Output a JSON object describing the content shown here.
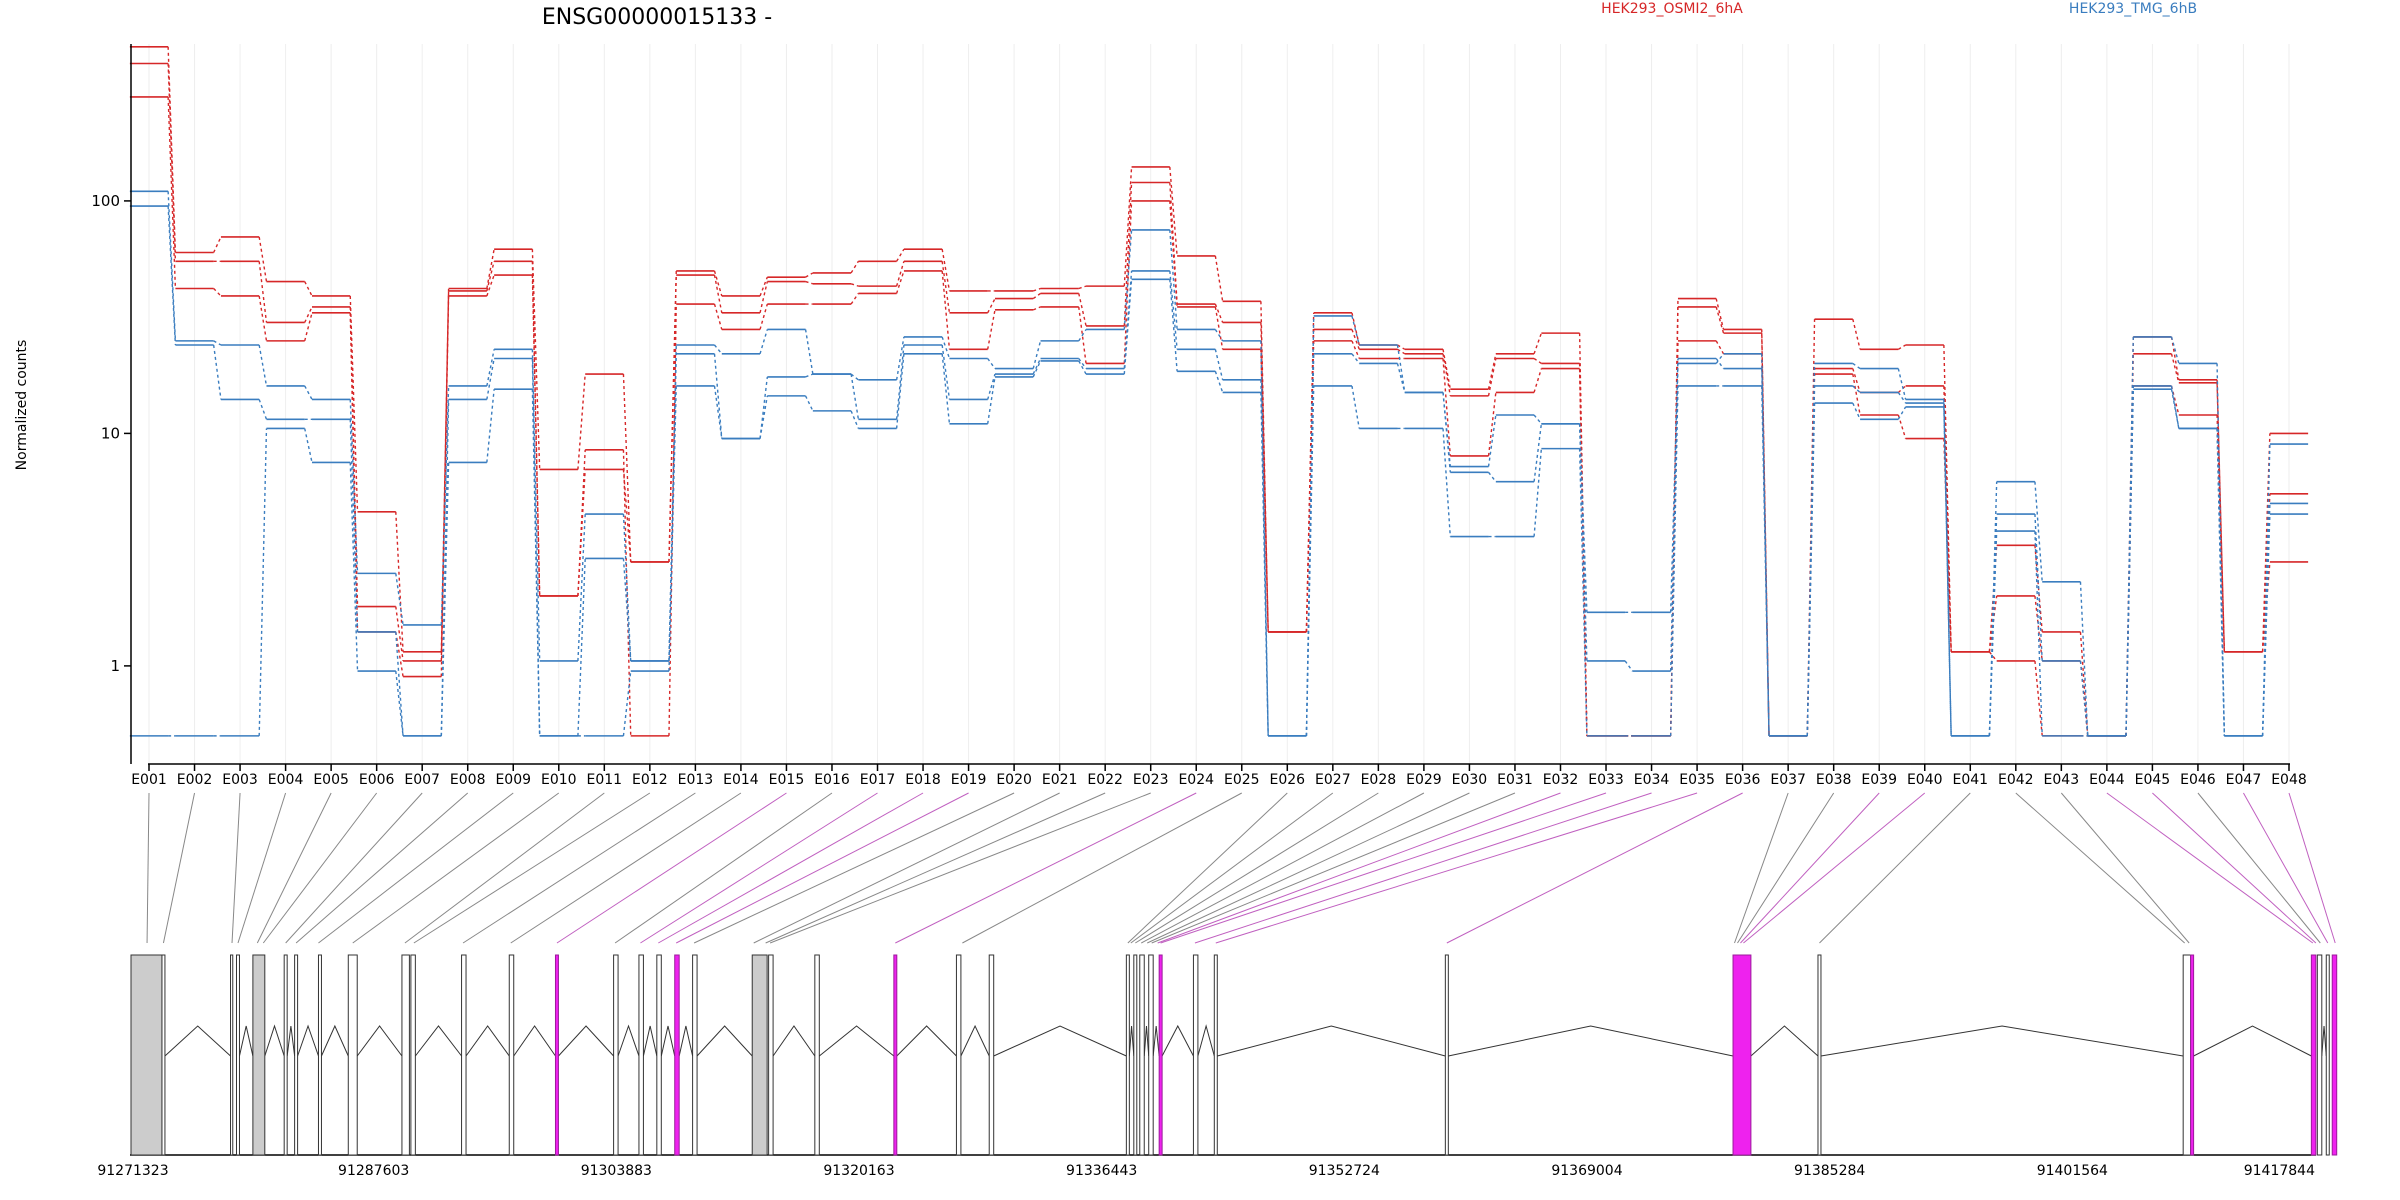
{
  "title": "ENSG00000015133 -",
  "chart_data": {
    "type": "line",
    "title": "ENSG00000015133 -",
    "xlabel": "",
    "ylabel": "Normalized counts",
    "y_scale": "log",
    "ylim": [
      0.48,
      600
    ],
    "y_ticks": [
      1,
      10,
      100
    ],
    "y_tick_labels": [
      "1",
      "10",
      "100"
    ],
    "grid": "vertical",
    "categories": [
      "E001",
      "E002",
      "E003",
      "E004",
      "E005",
      "E006",
      "E007",
      "E008",
      "E009",
      "E010",
      "E011",
      "E012",
      "E013",
      "E014",
      "E015",
      "E016",
      "E017",
      "E018",
      "E019",
      "E020",
      "E021",
      "E022",
      "E023",
      "E024",
      "E025",
      "E026",
      "E027",
      "E028",
      "E029",
      "E030",
      "E031",
      "E032",
      "E033",
      "E034",
      "E035",
      "E036",
      "E037",
      "E038",
      "E039",
      "E040",
      "E041",
      "E042",
      "E043",
      "E044",
      "E045",
      "E046",
      "E047",
      "E048"
    ],
    "legend": [
      {
        "label": "HEK293_OSMI2_6hA",
        "color": "#d62728"
      },
      {
        "label": "HEK293_TMG_6hB",
        "color": "#3a7dbf"
      }
    ],
    "series": [
      {
        "group": "HEK293_OSMI2_6hA",
        "color": "#d62728",
        "values": [
          460,
          60,
          70,
          45,
          39,
          4.6,
          1.15,
          42,
          62,
          7,
          18,
          2.8,
          50,
          39,
          47,
          49,
          55,
          62,
          41,
          41,
          42,
          43,
          140,
          58,
          37,
          1.4,
          33,
          24,
          23,
          15.5,
          22,
          27,
          0.5,
          0.5,
          38,
          28,
          0.5,
          31,
          23,
          24,
          1.15,
          3.3,
          1.4,
          0.5,
          26,
          17,
          1.15,
          10
        ]
      },
      {
        "group": "HEK293_OSMI2_6hA",
        "color": "#d62728",
        "values": [
          390,
          55,
          55,
          30,
          35,
          1.8,
          1.05,
          41,
          55,
          2,
          7,
          2.8,
          48,
          33,
          45,
          44,
          43,
          55,
          33,
          38,
          40,
          29,
          120,
          36,
          30,
          1.4,
          28,
          23,
          22,
          14.5,
          21,
          20,
          0.5,
          0.5,
          35,
          27,
          0.5,
          19,
          15,
          16,
          1.15,
          2,
          1.05,
          0.5,
          22,
          16.5,
          1.15,
          5.5
        ]
      },
      {
        "group": "HEK293_OSMI2_6hA",
        "color": "#d62728",
        "values": [
          280,
          42,
          39,
          25,
          33,
          1.4,
          0.9,
          39,
          48,
          2,
          8.5,
          0.5,
          36,
          28,
          36,
          36,
          40,
          50,
          23,
          34,
          35,
          20,
          100,
          35,
          23,
          1.4,
          25,
          21,
          21,
          8,
          15,
          19,
          0.5,
          0.5,
          25,
          22,
          0.5,
          18,
          12,
          9.5,
          1.15,
          1.05,
          0.5,
          0.5,
          16,
          12,
          1.15,
          2.8
        ]
      },
      {
        "group": "HEK293_TMG_6hB",
        "color": "#3a7dbf",
        "values": [
          110,
          25,
          24,
          16,
          14,
          2.5,
          1.5,
          16,
          23,
          1.05,
          4.5,
          1.05,
          24,
          22,
          28,
          18,
          17,
          26,
          21,
          19,
          25,
          28,
          75,
          28,
          25,
          0.5,
          32,
          24,
          15,
          7.2,
          12,
          11,
          1.7,
          1.7,
          21,
          19,
          0.5,
          20,
          19,
          14,
          0.5,
          6.2,
          2.3,
          0.5,
          26,
          20,
          0.5,
          9
        ]
      },
      {
        "group": "HEK293_TMG_6hB",
        "color": "#3a7dbf",
        "values": [
          95,
          24,
          14,
          11.5,
          11.5,
          1.4,
          0.5,
          14,
          21,
          0.5,
          2.9,
          1.05,
          22,
          9.5,
          17.5,
          18,
          11.5,
          24,
          14,
          18,
          21,
          19,
          50,
          23,
          17,
          0.5,
          22,
          20,
          15,
          6.8,
          6.2,
          11,
          1.05,
          0.95,
          20,
          22,
          0.5,
          16,
          15,
          13.5,
          0.5,
          4.5,
          1.05,
          0.5,
          16,
          10.5,
          0.5,
          5
        ]
      },
      {
        "group": "HEK293_TMG_6hB",
        "color": "#3a7dbf",
        "values": [
          0.5,
          0.5,
          0.5,
          10.5,
          7.5,
          0.95,
          0.5,
          7.5,
          15.5,
          0.5,
          0.5,
          0.95,
          16,
          9.5,
          14.5,
          12.5,
          10.5,
          22,
          11,
          17.5,
          20.5,
          18,
          46,
          18.5,
          15,
          0.5,
          16,
          10.5,
          10.5,
          3.6,
          3.6,
          8.6,
          0.5,
          0.5,
          16,
          16,
          0.5,
          13.5,
          11.5,
          13,
          0.5,
          3.8,
          0.5,
          0.5,
          15.5,
          10.5,
          0.5,
          4.5
        ]
      }
    ],
    "gene_model": {
      "coordinates": [
        "91271323",
        "91287603",
        "91303883",
        "91320163",
        "91336443",
        "91352724",
        "91369004",
        "91385284",
        "91401564",
        "91417844"
      ],
      "region_start": 91271323,
      "region_end": 91417844,
      "highlight_color": "#ee22ee",
      "exons": [
        {
          "start": 91271323,
          "end": 91273400,
          "fill": "gray"
        },
        {
          "start": 91273400,
          "end": 91273600,
          "fill": "white"
        },
        {
          "start": 91278000,
          "end": 91278150,
          "fill": "white"
        },
        {
          "start": 91278400,
          "end": 91278600,
          "fill": "white"
        },
        {
          "start": 91279500,
          "end": 91280300,
          "fill": "gray"
        },
        {
          "start": 91281600,
          "end": 91281800,
          "fill": "white"
        },
        {
          "start": 91282300,
          "end": 91282500,
          "fill": "white"
        },
        {
          "start": 91283900,
          "end": 91284100,
          "fill": "white"
        },
        {
          "start": 91285900,
          "end": 91286500,
          "fill": "white"
        },
        {
          "start": 91289500,
          "end": 91290000,
          "fill": "white"
        },
        {
          "start": 91290100,
          "end": 91290400,
          "fill": "white"
        },
        {
          "start": 91293500,
          "end": 91293800,
          "fill": "white"
        },
        {
          "start": 91296700,
          "end": 91297000,
          "fill": "white"
        },
        {
          "start": 91299800,
          "end": 91300000,
          "fill": "magenta"
        },
        {
          "start": 91303700,
          "end": 91304000,
          "fill": "white"
        },
        {
          "start": 91305400,
          "end": 91305700,
          "fill": "white"
        },
        {
          "start": 91306600,
          "end": 91306900,
          "fill": "white"
        },
        {
          "start": 91307800,
          "end": 91308100,
          "fill": "magenta"
        },
        {
          "start": 91309000,
          "end": 91309300,
          "fill": "white"
        },
        {
          "start": 91313000,
          "end": 91314000,
          "fill": "gray"
        },
        {
          "start": 91314100,
          "end": 91314400,
          "fill": "white"
        },
        {
          "start": 91317200,
          "end": 91317500,
          "fill": "white"
        },
        {
          "start": 91322500,
          "end": 91322700,
          "fill": "magenta"
        },
        {
          "start": 91326700,
          "end": 91327000,
          "fill": "white"
        },
        {
          "start": 91328900,
          "end": 91329200,
          "fill": "white"
        },
        {
          "start": 91338100,
          "end": 91338300,
          "fill": "white"
        },
        {
          "start": 91338600,
          "end": 91338800,
          "fill": "white"
        },
        {
          "start": 91339000,
          "end": 91339300,
          "fill": "white"
        },
        {
          "start": 91339600,
          "end": 91339900,
          "fill": "white"
        },
        {
          "start": 91340300,
          "end": 91340500,
          "fill": "magenta"
        },
        {
          "start": 91342600,
          "end": 91342900,
          "fill": "white"
        },
        {
          "start": 91344000,
          "end": 91344200,
          "fill": "white"
        },
        {
          "start": 91359500,
          "end": 91359700,
          "fill": "white"
        },
        {
          "start": 91378800,
          "end": 91380000,
          "fill": "magenta"
        },
        {
          "start": 91384500,
          "end": 91384700,
          "fill": "white"
        },
        {
          "start": 91409000,
          "end": 91409500,
          "fill": "white"
        },
        {
          "start": 91409500,
          "end": 91409700,
          "fill": "magenta"
        },
        {
          "start": 91417600,
          "end": 91417900,
          "fill": "magenta"
        },
        {
          "start": 91418000,
          "end": 91418300,
          "fill": "white"
        },
        {
          "start": 91418600,
          "end": 91418800,
          "fill": "white"
        },
        {
          "start": 91419000,
          "end": 91419300,
          "fill": "magenta"
        }
      ],
      "connectors": [
        {
          "exon": "E001",
          "pos": 91272400,
          "color": "gray"
        },
        {
          "exon": "E002",
          "pos": 91273500,
          "color": "gray"
        },
        {
          "exon": "E003",
          "pos": 91278100,
          "color": "gray"
        },
        {
          "exon": "E004",
          "pos": 91278500,
          "color": "gray"
        },
        {
          "exon": "E005",
          "pos": 91279800,
          "color": "gray"
        },
        {
          "exon": "E006",
          "pos": 91280200,
          "color": "gray"
        },
        {
          "exon": "E007",
          "pos": 91281700,
          "color": "gray"
        },
        {
          "exon": "E008",
          "pos": 91282400,
          "color": "gray"
        },
        {
          "exon": "E009",
          "pos": 91283900,
          "color": "gray"
        },
        {
          "exon": "E010",
          "pos": 91286200,
          "color": "gray"
        },
        {
          "exon": "E011",
          "pos": 91289700,
          "color": "gray"
        },
        {
          "exon": "E012",
          "pos": 91290300,
          "color": "gray"
        },
        {
          "exon": "E013",
          "pos": 91293600,
          "color": "gray"
        },
        {
          "exon": "E014",
          "pos": 91296800,
          "color": "gray"
        },
        {
          "exon": "E015",
          "pos": 91299900,
          "color": "magenta"
        },
        {
          "exon": "E016",
          "pos": 91303800,
          "color": "gray"
        },
        {
          "exon": "E017",
          "pos": 91305500,
          "color": "magenta"
        },
        {
          "exon": "E018",
          "pos": 91306700,
          "color": "magenta"
        },
        {
          "exon": "E019",
          "pos": 91307900,
          "color": "magenta"
        },
        {
          "exon": "E020",
          "pos": 91309100,
          "color": "gray"
        },
        {
          "exon": "E021",
          "pos": 91313100,
          "color": "gray"
        },
        {
          "exon": "E022",
          "pos": 91313900,
          "color": "gray"
        },
        {
          "exon": "E023",
          "pos": 91314200,
          "color": "gray"
        },
        {
          "exon": "E024",
          "pos": 91322600,
          "color": "magenta"
        },
        {
          "exon": "E025",
          "pos": 91327100,
          "color": "gray"
        },
        {
          "exon": "E026",
          "pos": 91338200,
          "color": "gray"
        },
        {
          "exon": "E027",
          "pos": 91338400,
          "color": "gray"
        },
        {
          "exon": "E028",
          "pos": 91338700,
          "color": "gray"
        },
        {
          "exon": "E029",
          "pos": 91339100,
          "color": "gray"
        },
        {
          "exon": "E030",
          "pos": 91339500,
          "color": "gray"
        },
        {
          "exon": "E031",
          "pos": 91339800,
          "color": "gray"
        },
        {
          "exon": "E032",
          "pos": 91340200,
          "color": "magenta"
        },
        {
          "exon": "E033",
          "pos": 91340400,
          "color": "magenta"
        },
        {
          "exon": "E034",
          "pos": 91342700,
          "color": "magenta"
        },
        {
          "exon": "E035",
          "pos": 91344100,
          "color": "magenta"
        },
        {
          "exon": "E036",
          "pos": 91359600,
          "color": "magenta"
        },
        {
          "exon": "E037",
          "pos": 91378900,
          "color": "gray"
        },
        {
          "exon": "E038",
          "pos": 91379100,
          "color": "gray"
        },
        {
          "exon": "E039",
          "pos": 91379300,
          "color": "magenta"
        },
        {
          "exon": "E040",
          "pos": 91379500,
          "color": "magenta"
        },
        {
          "exon": "E041",
          "pos": 91384600,
          "color": "gray"
        },
        {
          "exon": "E042",
          "pos": 91409100,
          "color": "gray"
        },
        {
          "exon": "E043",
          "pos": 91409400,
          "color": "gray"
        },
        {
          "exon": "E044",
          "pos": 91417700,
          "color": "magenta"
        },
        {
          "exon": "E045",
          "pos": 91417900,
          "color": "magenta"
        },
        {
          "exon": "E046",
          "pos": 91418200,
          "color": "gray"
        },
        {
          "exon": "E047",
          "pos": 91418700,
          "color": "magenta"
        },
        {
          "exon": "E048",
          "pos": 91419200,
          "color": "magenta"
        }
      ]
    }
  }
}
